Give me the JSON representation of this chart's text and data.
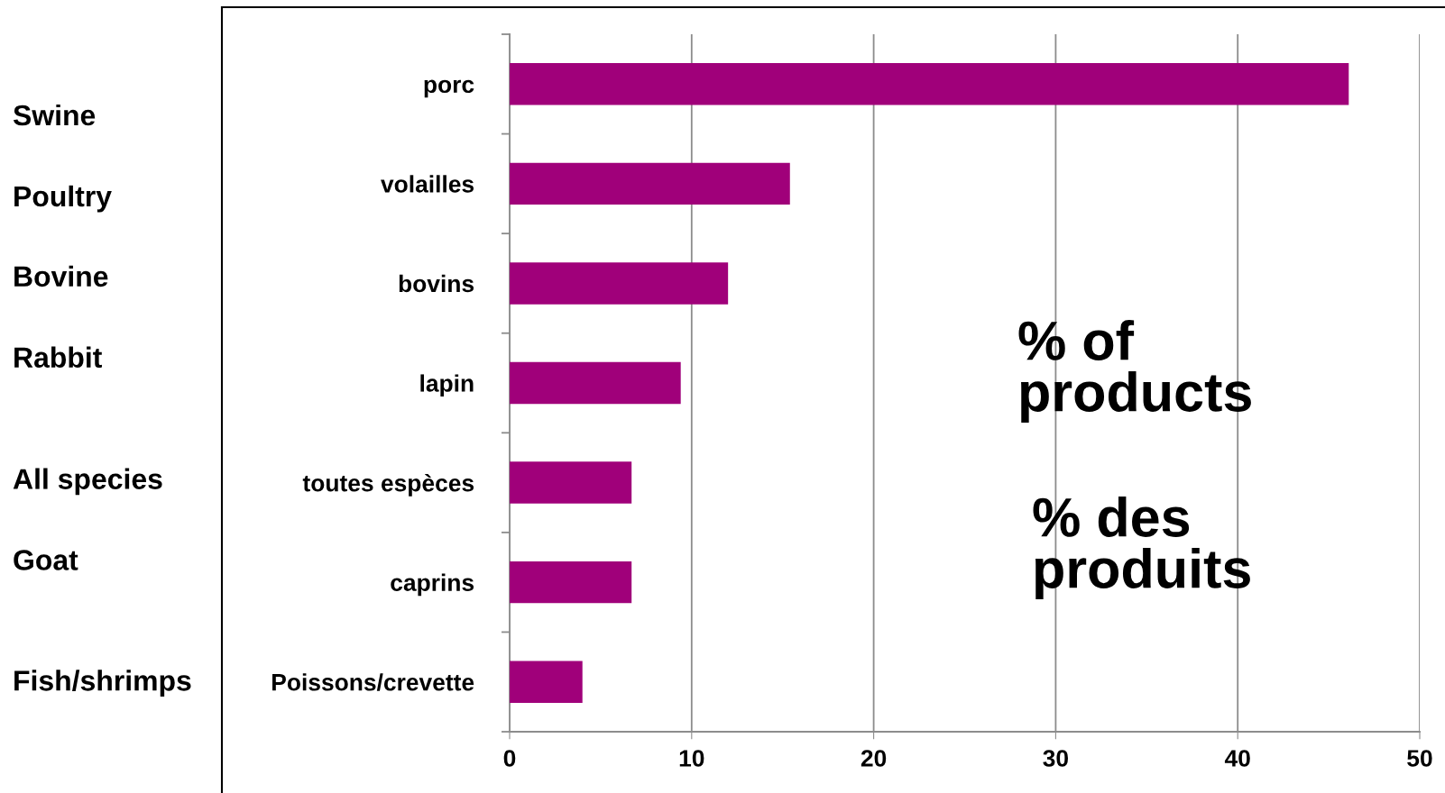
{
  "chart_data": {
    "type": "bar",
    "orientation": "horizontal",
    "categories": [
      "porc",
      "volailles",
      "bovins",
      "lapin",
      "toutes espèces",
      "caprins",
      "Poissons/crevette"
    ],
    "values": [
      46.1,
      15.4,
      12.0,
      9.4,
      6.7,
      6.7,
      4.0
    ],
    "color": "#a0007a",
    "xlim": [
      0,
      50
    ],
    "xticks": [
      0,
      10,
      20,
      30,
      40,
      50
    ],
    "grid": "x",
    "annotations": [
      "Swine",
      "Poultry",
      "Bovine",
      "Rabbit",
      "All species",
      "Goat",
      "Fish/shrimps",
      "% of\nproducts",
      "% des\nproduits"
    ]
  }
}
